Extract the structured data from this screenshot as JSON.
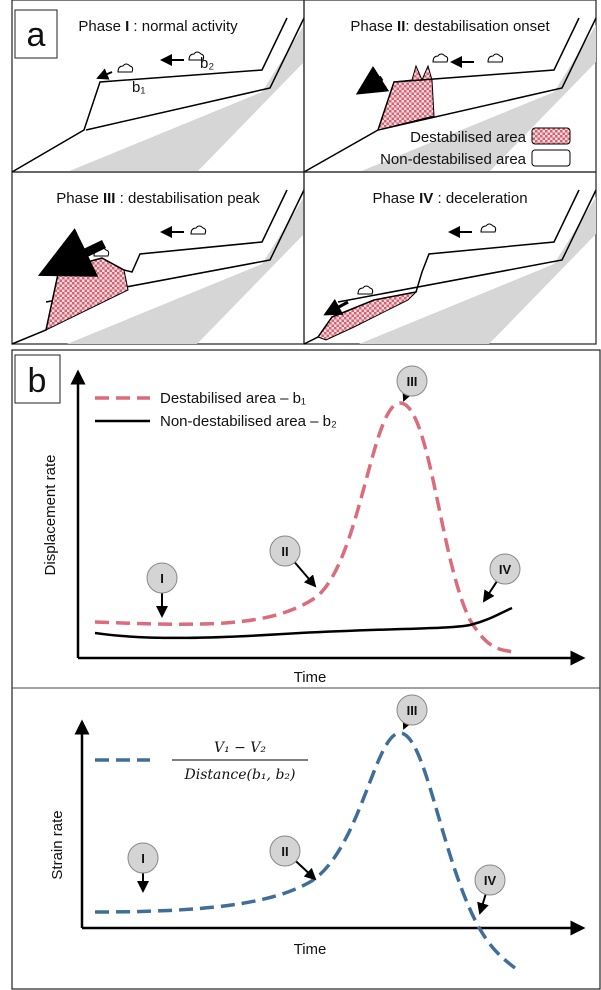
{
  "panel_a": {
    "label": "a",
    "phases": [
      {
        "prefix": "Phase ",
        "numeral": "I",
        "suffix": " : normal activity"
      },
      {
        "prefix": "Phase ",
        "numeral": "II",
        "suffix": ": destabilisation onset"
      },
      {
        "prefix": "Phase ",
        "numeral": "III",
        "suffix": " : destabilisation peak"
      },
      {
        "prefix": "Phase ",
        "numeral": "IV",
        "suffix": " : deceleration"
      }
    ],
    "blocks": [
      "b₁",
      "b₂"
    ],
    "legend": [
      "Destabilised area",
      "Non-destabilised area"
    ]
  },
  "panel_b": {
    "label": "b",
    "displacement_plot": {
      "y_label": "Displacement rate",
      "x_label": "Time",
      "legend": [
        "Destabilised area – b₁",
        "Non-destabilised area – b₂"
      ],
      "markers": [
        "I",
        "II",
        "III",
        "IV"
      ]
    },
    "strain_plot": {
      "y_label": "Strain rate",
      "x_label": "Time",
      "numerator": "V₁ − V₂",
      "denominator": "Distance(b₁, b₂)",
      "markers": [
        "I",
        "II",
        "III",
        "IV"
      ]
    }
  }
}
